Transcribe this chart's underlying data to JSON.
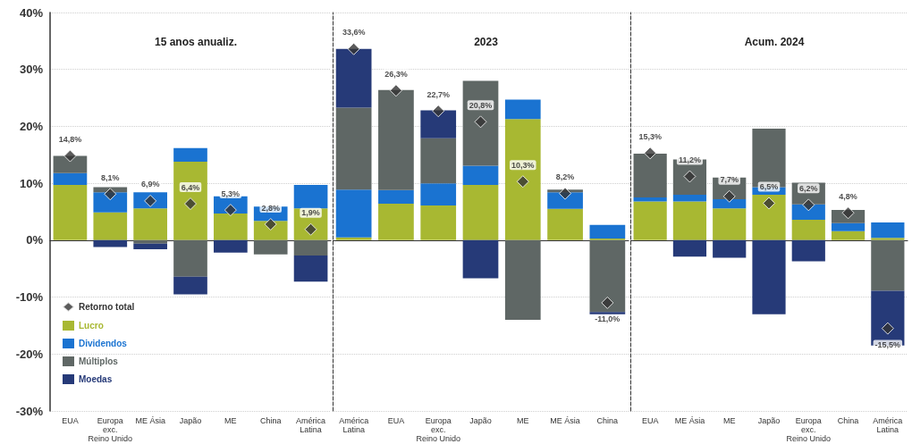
{
  "chart_data": [
    {
      "type": "bar",
      "title": "15 anos anualiz.",
      "stacked": true,
      "grid": "y",
      "legend": "bottom left",
      "marker": "diamond",
      "ylim": [
        -30,
        40
      ],
      "yticks": [
        {
          "value": -30,
          "label": "-30%"
        },
        {
          "value": -20,
          "label": "-20%"
        },
        {
          "value": -10,
          "label": "-10%"
        },
        {
          "value": 0,
          "label": "0%"
        },
        {
          "value": 10,
          "label": "10%"
        },
        {
          "value": 20,
          "label": "20%"
        },
        {
          "value": 30,
          "label": "30%"
        },
        {
          "value": 40,
          "label": "40%"
        }
      ],
      "categories": [
        "EUA",
        "Europa\nexc.\nReino Unido",
        "ME Ásia",
        "Japão",
        "ME",
        "China",
        "América\nLatina"
      ],
      "series": [
        {
          "name": "Retorno total",
          "type": "scatter",
          "color": "#333333",
          "values": [
            14.8,
            8.1,
            6.9,
            6.4,
            5.3,
            2.8,
            1.9
          ],
          "value_labels": [
            "14,8%",
            "8,1%",
            "6,9%",
            "6,4%",
            "5,3%",
            "2,8%",
            "1,9%"
          ]
        },
        {
          "name": "Lucro",
          "color": "#a8b832",
          "values": [
            9.7,
            4.9,
            5.6,
            13.8,
            4.7,
            3.4,
            5.6
          ]
        },
        {
          "name": "Dividendos",
          "color": "#1a73d1",
          "values": [
            2.1,
            3.5,
            2.8,
            2.4,
            3.0,
            2.5,
            4.1
          ]
        },
        {
          "name": "Múltiplos",
          "color": "#5f6765",
          "values": [
            3.0,
            0.9,
            -0.6,
            -6.4,
            null,
            -2.5,
            -2.7
          ]
        },
        {
          "name": "Moedas",
          "color": "#263a78",
          "values": [
            null,
            -1.2,
            -1.0,
            -3.1,
            -2.2,
            null,
            -4.6
          ]
        }
      ]
    },
    {
      "type": "bar",
      "title": "2023",
      "stacked": true,
      "grid": "y",
      "marker": "diamond",
      "tick_labels": "x",
      "ylim": [
        -30,
        40
      ],
      "yticks": [
        -30,
        -20,
        -10,
        0,
        10,
        20,
        30,
        40
      ],
      "categories": [
        "América\nLatina",
        "EUA",
        "Europa\nexc.\nReino Unido",
        "Japão",
        "ME",
        "ME Ásia",
        "China"
      ],
      "series": [
        {
          "type": "scatter",
          "color": "#333333",
          "values": [
            33.6,
            26.3,
            22.7,
            20.8,
            10.3,
            8.2,
            -11.0
          ],
          "value_labels": [
            "33,6%",
            "26,3%",
            "22,7%",
            "20,8%",
            "10,3%",
            "8,2%",
            "-11,0%"
          ]
        },
        {
          "color": "#a8b832",
          "values": [
            0.5,
            6.4,
            6.1,
            9.7,
            21.3,
            5.5,
            0.3
          ]
        },
        {
          "color": "#1a73d1",
          "values": [
            8.4,
            2.4,
            3.9,
            3.4,
            3.4,
            2.9,
            2.4
          ]
        },
        {
          "color": "#5f6765",
          "values": [
            14.4,
            17.6,
            7.9,
            14.9,
            -14.0,
            0.5,
            -12.6
          ]
        },
        {
          "color": "#263a78",
          "values": [
            10.3,
            null,
            4.9,
            -6.7,
            null,
            null,
            -0.4
          ]
        }
      ]
    },
    {
      "type": "bar",
      "title": "Acum. 2024",
      "stacked": true,
      "grid": "y",
      "marker": "diamond",
      "tick_labels": "x",
      "ylim": [
        -30,
        40
      ],
      "yticks": [
        -30,
        -20,
        -10,
        0,
        10,
        20,
        30,
        40
      ],
      "categories": [
        "EUA",
        "ME Ásia",
        "ME",
        "Japão",
        "Europa\nexc.\nReino Unido",
        "China",
        "América\nLatina"
      ],
      "series": [
        {
          "type": "scatter",
          "color": "#333333",
          "values": [
            15.3,
            11.2,
            7.7,
            6.5,
            6.2,
            4.8,
            -15.5
          ],
          "value_labels": [
            "15,3%",
            "11,2%",
            "7,7%",
            "6,5%",
            "6,2%",
            "4,8%",
            "-15,5%"
          ]
        },
        {
          "color": "#a8b832",
          "values": [
            6.8,
            6.8,
            5.6,
            8.0,
            3.6,
            1.6,
            0.4
          ]
        },
        {
          "color": "#1a73d1",
          "values": [
            0.7,
            1.2,
            1.6,
            1.3,
            2.7,
            1.4,
            2.7
          ]
        },
        {
          "color": "#5f6765",
          "values": [
            7.7,
            6.2,
            3.8,
            10.3,
            3.8,
            2.3,
            -8.9
          ]
        },
        {
          "color": "#263a78",
          "values": [
            null,
            -2.9,
            -3.1,
            -13.0,
            -3.7,
            null,
            -9.6
          ]
        }
      ]
    }
  ]
}
